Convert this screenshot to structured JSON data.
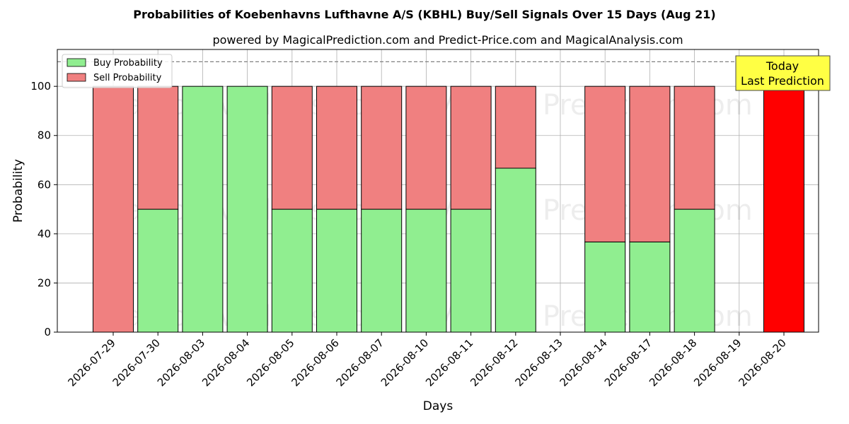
{
  "chart_data": {
    "type": "bar",
    "stacked": true,
    "title": "Probabilities of Koebenhavns Lufthavne A/S (KBHL) Buy/Sell Signals Over 15 Days (Aug 21)",
    "subtitle": "powered by MagicalPrediction.com and Predict-Price.com and MagicalAnalysis.com",
    "xlabel": "Days",
    "ylabel": "Probability",
    "ylim": [
      0,
      115
    ],
    "yticks": [
      0,
      20,
      40,
      60,
      80,
      100
    ],
    "grid": true,
    "legend_position": "top-left",
    "threshold_line": 110,
    "categories": [
      "2026-07-29",
      "2026-07-30",
      "2026-08-03",
      "2026-08-04",
      "2026-08-05",
      "2026-08-06",
      "2026-08-07",
      "2026-08-10",
      "2026-08-11",
      "2026-08-12",
      "2026-08-13",
      "2026-08-14",
      "2026-08-17",
      "2026-08-18",
      "2026-08-19",
      "2026-08-20"
    ],
    "series": [
      {
        "name": "Buy Probability",
        "color": "#90ee90",
        "values": [
          0,
          50,
          100,
          100,
          50,
          50,
          50,
          50,
          50,
          66.7,
          null,
          36.7,
          36.7,
          50,
          null,
          0
        ]
      },
      {
        "name": "Sell Probability",
        "color": "#f08080",
        "values": [
          100,
          50,
          0,
          0,
          50,
          50,
          50,
          50,
          50,
          33.3,
          null,
          63.3,
          63.3,
          50,
          null,
          100
        ]
      }
    ],
    "highlight": {
      "category": "2026-08-20",
      "color": "#ff0000"
    },
    "annotation": {
      "line1": "Today",
      "line2": "Last Prediction",
      "background": "#ffff44"
    },
    "watermarks": [
      "MagicalAnalysis.com",
      "Magica Prediction.com"
    ]
  }
}
